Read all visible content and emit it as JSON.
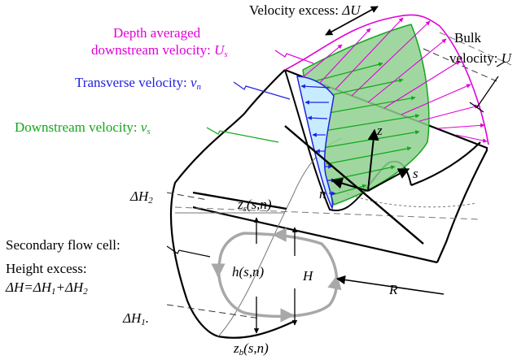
{
  "labels": {
    "velocity_excess": "Velocity excess:",
    "delta_u": "ΔU",
    "depth_averaged_line1": "Depth averaged",
    "depth_averaged_line2": "downstream velocity:",
    "us_symbol": "U",
    "us_sub": "s",
    "bulk_line1": "Bulk",
    "bulk_line2": "velocity:",
    "bulk_symbol": "U",
    "transverse": "Transverse velocity:",
    "vn_symbol": "v",
    "vn_sub": "n",
    "downstream": "Downstream velocity:",
    "vs_symbol": "v",
    "vs_sub": "s",
    "z_axis": "z",
    "n_axis": "n",
    "s_axis": "s",
    "delta_h2": "ΔH",
    "delta_h2_sub": "2",
    "zs_z": "z",
    "zs_sub": "s",
    "zs_args": "(s,n)",
    "secondary": "Secondary flow cell:",
    "height_excess": "Height excess:",
    "dh_eq_a": "ΔH=ΔH",
    "dh_eq_sub1": "1",
    "dh_eq_b": "+ΔH",
    "dh_eq_sub2": "2",
    "h_func": "h(s,n)",
    "H_symbol": "H",
    "R_symbol": "R",
    "delta_h1": "ΔH",
    "delta_h1_sub": "1",
    "delta_h1_dot": ".",
    "zb_z": "z",
    "zb_sub": "b",
    "zb_args": "(s,n)"
  },
  "colors": {
    "magenta": "#e000d8",
    "blue": "#2222e0",
    "green": "#12a81a",
    "green_fill": "#8fd08f",
    "blue_fill": "#c8ecff",
    "grey_cell": "#a8a8a8"
  }
}
